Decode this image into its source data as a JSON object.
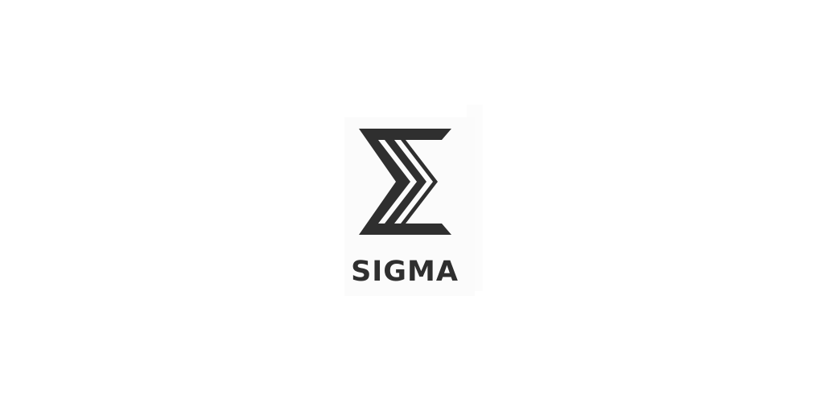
{
  "logo": {
    "wordmark": "SIGMA",
    "icon": "sigma-icon",
    "ink_color": "#2f2f2f",
    "card_color": "#fbfbfb",
    "background_color": "#ffffff"
  }
}
